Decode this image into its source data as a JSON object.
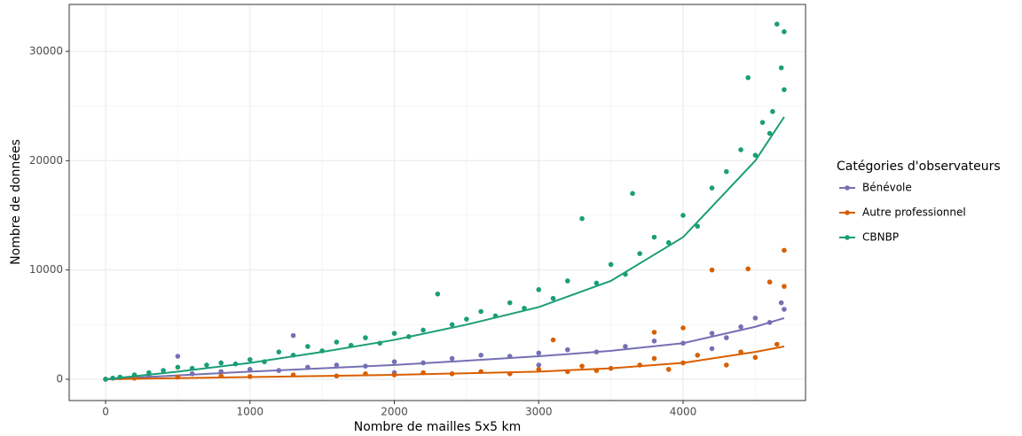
{
  "chart_data": {
    "type": "scatter",
    "x_label": "Nombre de mailles 5x5 km",
    "y_label": "Nombre de données",
    "legend_title": "Catégories d'observateurs",
    "legend_position": "right",
    "grid": true,
    "xlim": [
      -252,
      4848
    ],
    "ylim": [
      -1950,
      34300
    ],
    "xticks": [
      0,
      1000,
      2000,
      3000,
      4000
    ],
    "yticks": [
      0,
      10000,
      20000,
      30000
    ],
    "x_minor_ticks": [
      500,
      1500,
      2500,
      3500,
      4500
    ],
    "y_minor_ticks": [
      5000,
      15000,
      25000
    ],
    "series": [
      {
        "name": "Bénévole",
        "color": "#7570b3",
        "x": [
          0,
          100,
          300,
          500,
          600,
          800,
          1000,
          1200,
          1300,
          1400,
          1600,
          1800,
          2000,
          2200,
          2400,
          2600,
          2800,
          3000,
          3200,
          3400,
          3600,
          3800,
          4000,
          4200,
          4300,
          4400,
          4500,
          4600,
          4680,
          4700,
          4200,
          3000,
          2000
        ],
        "values": [
          0,
          150,
          400,
          2100,
          500,
          700,
          900,
          800,
          4000,
          1100,
          1300,
          1200,
          1600,
          1500,
          1900,
          2200,
          2100,
          2400,
          2700,
          2500,
          3000,
          3500,
          3300,
          4200,
          3800,
          4800,
          5600,
          5200,
          7000,
          6400,
          2800,
          1300,
          600
        ],
        "fit_x": [
          0,
          1000,
          2000,
          3000,
          3500,
          4000,
          4500,
          4700
        ],
        "fit_values": [
          0,
          700,
          1300,
          2100,
          2600,
          3300,
          4800,
          5600
        ]
      },
      {
        "name": "Autre professionnel",
        "color": "#d95f02",
        "x": [
          0,
          200,
          500,
          800,
          1000,
          1300,
          1600,
          1800,
          2000,
          2200,
          2400,
          2600,
          2800,
          3000,
          3100,
          3200,
          3300,
          3400,
          3500,
          3700,
          3800,
          3900,
          4000,
          4100,
          4200,
          4300,
          4400,
          4450,
          4500,
          4600,
          4650,
          4700,
          4700,
          4000,
          3800
        ],
        "values": [
          0,
          100,
          200,
          300,
          250,
          400,
          300,
          500,
          400,
          600,
          500,
          700,
          500,
          900,
          3600,
          700,
          1200,
          800,
          1000,
          1300,
          1900,
          900,
          1500,
          2200,
          10000,
          1300,
          2500,
          10100,
          2000,
          8900,
          3200,
          11800,
          8500,
          4700,
          4300
        ],
        "fit_x": [
          0,
          1000,
          2000,
          3000,
          3500,
          4000,
          4500,
          4700
        ],
        "fit_values": [
          0,
          200,
          400,
          700,
          1000,
          1500,
          2500,
          3000
        ]
      },
      {
        "name": "CBNBP",
        "color": "#1b9e77",
        "x": [
          0,
          50,
          100,
          200,
          300,
          400,
          500,
          600,
          700,
          800,
          900,
          1000,
          1100,
          1200,
          1300,
          1400,
          1500,
          1600,
          1700,
          1800,
          1900,
          2000,
          2100,
          2200,
          2300,
          2400,
          2500,
          2600,
          2700,
          2800,
          2900,
          3000,
          3100,
          3200,
          3300,
          3400,
          3500,
          3600,
          3650,
          3700,
          3800,
          3900,
          4000,
          4100,
          4200,
          4300,
          4400,
          4450,
          4500,
          4550,
          4600,
          4620,
          4650,
          4680,
          4700,
          4700
        ],
        "values": [
          0,
          100,
          200,
          400,
          600,
          800,
          1100,
          1000,
          1300,
          1500,
          1400,
          1800,
          1600,
          2500,
          2200,
          3000,
          2600,
          3400,
          3100,
          3800,
          3300,
          4200,
          3900,
          4500,
          7800,
          5000,
          5500,
          6200,
          5800,
          7000,
          6500,
          8200,
          7400,
          9000,
          14700,
          8800,
          10500,
          9600,
          17000,
          11500,
          13000,
          12500,
          15000,
          14000,
          17500,
          19000,
          21000,
          27600,
          20500,
          23500,
          22500,
          24500,
          32500,
          28500,
          31800,
          26500
        ],
        "fit_x": [
          0,
          500,
          1000,
          1500,
          2000,
          2500,
          3000,
          3500,
          4000,
          4500,
          4700
        ],
        "fit_values": [
          0,
          700,
          1500,
          2500,
          3600,
          5000,
          6600,
          9000,
          13000,
          20000,
          24000
        ]
      }
    ]
  }
}
